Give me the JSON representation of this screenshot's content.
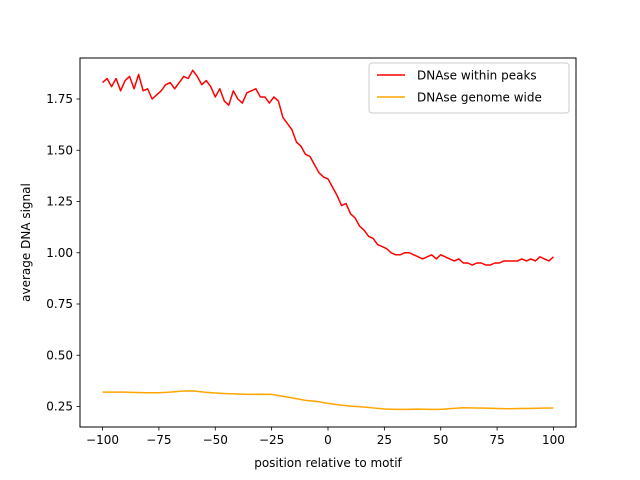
{
  "chart_data": {
    "type": "line",
    "title": "",
    "xlabel": "position relative to motif",
    "ylabel": "average DNA signal",
    "xlim": [
      -110,
      110
    ],
    "ylim": [
      0.15,
      1.95
    ],
    "xticks": [
      -100,
      -75,
      -50,
      -25,
      0,
      25,
      50,
      75,
      100
    ],
    "xtick_labels": [
      "−100",
      "−75",
      "−50",
      "−25",
      "0",
      "25",
      "50",
      "75",
      "100"
    ],
    "yticks": [
      0.25,
      0.5,
      0.75,
      1.0,
      1.25,
      1.5,
      1.75
    ],
    "ytick_labels": [
      "0.25",
      "0.50",
      "0.75",
      "1.00",
      "1.25",
      "1.50",
      "1.75"
    ],
    "grid": false,
    "legend": "top-right",
    "series": [
      {
        "name": "DNAse within peaks",
        "color": "#ff0000",
        "x": [
          -100,
          -98,
          -96,
          -94,
          -92,
          -90,
          -88,
          -86,
          -84,
          -82,
          -80,
          -78,
          -76,
          -74,
          -72,
          -70,
          -68,
          -66,
          -64,
          -62,
          -60,
          -58,
          -56,
          -54,
          -52,
          -50,
          -48,
          -46,
          -44,
          -42,
          -40,
          -38,
          -36,
          -34,
          -32,
          -30,
          -28,
          -26,
          -24,
          -22,
          -20,
          -18,
          -16,
          -14,
          -12,
          -10,
          -8,
          -6,
          -4,
          -2,
          0,
          2,
          4,
          6,
          8,
          10,
          12,
          14,
          16,
          18,
          20,
          22,
          24,
          26,
          28,
          30,
          32,
          34,
          36,
          38,
          40,
          42,
          44,
          46,
          48,
          50,
          52,
          54,
          56,
          58,
          60,
          62,
          64,
          66,
          68,
          70,
          72,
          74,
          76,
          78,
          80,
          82,
          84,
          86,
          88,
          90,
          92,
          94,
          96,
          98,
          100
        ],
        "values": [
          1.83,
          1.85,
          1.81,
          1.85,
          1.79,
          1.84,
          1.86,
          1.8,
          1.87,
          1.79,
          1.8,
          1.75,
          1.77,
          1.79,
          1.82,
          1.83,
          1.8,
          1.83,
          1.86,
          1.85,
          1.89,
          1.86,
          1.82,
          1.84,
          1.81,
          1.76,
          1.8,
          1.74,
          1.72,
          1.79,
          1.75,
          1.73,
          1.78,
          1.79,
          1.8,
          1.76,
          1.76,
          1.73,
          1.76,
          1.74,
          1.66,
          1.63,
          1.6,
          1.54,
          1.52,
          1.48,
          1.47,
          1.43,
          1.39,
          1.37,
          1.36,
          1.32,
          1.28,
          1.23,
          1.24,
          1.19,
          1.17,
          1.13,
          1.11,
          1.08,
          1.07,
          1.04,
          1.03,
          1.02,
          1.0,
          0.99,
          0.99,
          1.0,
          1.0,
          0.99,
          0.98,
          0.97,
          0.98,
          0.99,
          0.97,
          0.99,
          0.98,
          0.97,
          0.96,
          0.97,
          0.95,
          0.95,
          0.94,
          0.95,
          0.95,
          0.94,
          0.94,
          0.95,
          0.95,
          0.96,
          0.96,
          0.96,
          0.96,
          0.97,
          0.96,
          0.97,
          0.96,
          0.98,
          0.97,
          0.96,
          0.98
        ]
      },
      {
        "name": "DNAse genome wide",
        "color": "#ffa500",
        "x": [
          -100,
          -95,
          -90,
          -85,
          -80,
          -75,
          -70,
          -65,
          -60,
          -55,
          -50,
          -45,
          -40,
          -35,
          -30,
          -25,
          -20,
          -15,
          -10,
          -5,
          0,
          5,
          10,
          15,
          20,
          25,
          30,
          35,
          40,
          45,
          50,
          55,
          60,
          65,
          70,
          75,
          80,
          85,
          90,
          95,
          100
        ],
        "values": [
          0.32,
          0.32,
          0.32,
          0.318,
          0.317,
          0.317,
          0.32,
          0.325,
          0.326,
          0.32,
          0.316,
          0.313,
          0.311,
          0.309,
          0.31,
          0.309,
          0.3,
          0.29,
          0.28,
          0.275,
          0.265,
          0.258,
          0.252,
          0.248,
          0.243,
          0.238,
          0.236,
          0.236,
          0.237,
          0.236,
          0.236,
          0.24,
          0.244,
          0.243,
          0.242,
          0.24,
          0.239,
          0.24,
          0.241,
          0.242,
          0.243
        ]
      }
    ]
  }
}
